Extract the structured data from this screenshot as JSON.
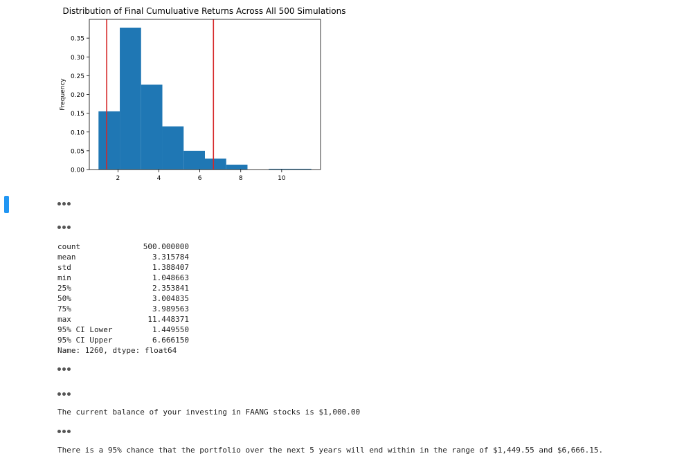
{
  "chart_data": {
    "type": "histogram",
    "title": "Distribution of Final Cumuluative Returns Across All 500 Simulations",
    "ylabel": "Frequency",
    "xlabel": "",
    "xlim": [
      0.6,
      11.9
    ],
    "ylim": [
      0,
      0.4
    ],
    "xticks": [
      2,
      4,
      6,
      8,
      10
    ],
    "yticks": [
      0.0,
      0.05,
      0.1,
      0.15,
      0.2,
      0.25,
      0.3,
      0.35
    ],
    "bins": [
      {
        "x0": 1.05,
        "x1": 2.09,
        "value": 0.155
      },
      {
        "x0": 2.09,
        "x1": 3.13,
        "value": 0.378
      },
      {
        "x0": 3.13,
        "x1": 4.17,
        "value": 0.226
      },
      {
        "x0": 4.17,
        "x1": 5.21,
        "value": 0.115
      },
      {
        "x0": 5.21,
        "x1": 6.25,
        "value": 0.05
      },
      {
        "x0": 6.25,
        "x1": 7.29,
        "value": 0.029
      },
      {
        "x0": 7.29,
        "x1": 8.33,
        "value": 0.013
      },
      {
        "x0": 8.33,
        "x1": 9.37,
        "value": 0.0
      },
      {
        "x0": 9.37,
        "x1": 10.41,
        "value": 0.002
      },
      {
        "x0": 10.41,
        "x1": 11.45,
        "value": 0.002
      }
    ],
    "vlines": [
      1.44955,
      6.66615
    ],
    "bar_color": "#1f77b4",
    "vline_color": "#d62728",
    "grid": false
  },
  "stats": {
    "rows": [
      {
        "key": "count",
        "value": "500.000000"
      },
      {
        "key": "mean",
        "value": "3.315784"
      },
      {
        "key": "std",
        "value": "1.388407"
      },
      {
        "key": "min",
        "value": "1.048663"
      },
      {
        "key": "25%",
        "value": "2.353841"
      },
      {
        "key": "50%",
        "value": "3.004835"
      },
      {
        "key": "75%",
        "value": "3.989563"
      },
      {
        "key": "max",
        "value": "11.448371"
      },
      {
        "key": "95% CI Lower",
        "value": "1.449550"
      },
      {
        "key": "95% CI Upper",
        "value": "6.666150"
      }
    ],
    "footer": "Name: 1260, dtype: float64"
  },
  "balance_text": "The current balance of your investing in FAANG stocks is $1,000.00",
  "range_text": "There is a 95% chance that the portfolio over the next 5 years will end within in the range of $1,449.55 and $6,666.15."
}
